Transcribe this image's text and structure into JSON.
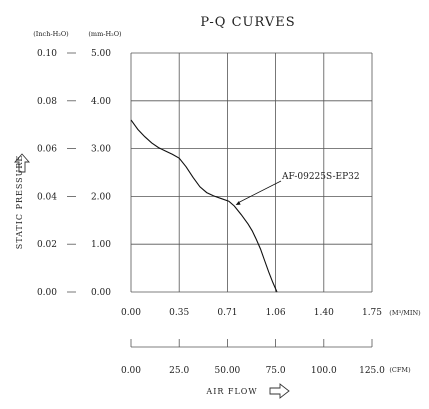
{
  "chart_data": {
    "type": "line",
    "title": "P-Q CURVES",
    "ylabel": "STATIC PRESSURE",
    "xlabel": "AIR FLOW",
    "y_unit_left": "(Inch-H₂O)",
    "y_unit_right": "(mm-H₂O)",
    "x_unit_primary": "(M³/MIN)",
    "x_unit_secondary": "(CFM)",
    "y_ticks_inch": [
      "0.10",
      "0.08",
      "0.06",
      "0.04",
      "0.02",
      "0.00"
    ],
    "y_ticks_mm": [
      "5.00",
      "4.00",
      "3.00",
      "2.00",
      "1.00",
      "0.00"
    ],
    "x_ticks_m3": [
      "0.00",
      "0.35",
      "0.71",
      "1.06",
      "1.40",
      "1.75"
    ],
    "x_ticks_cfm": [
      "0.00",
      "25.0",
      "50.00",
      "75.0",
      "100.0",
      "125.0"
    ],
    "xlim": [
      0,
      1.75
    ],
    "ylim": [
      0,
      5.0
    ],
    "grid": true,
    "series": [
      {
        "name": "AF-09225S-EP32",
        "x": [
          0.0,
          0.05,
          0.1,
          0.15,
          0.2,
          0.25,
          0.3,
          0.35,
          0.4,
          0.45,
          0.5,
          0.55,
          0.6,
          0.65,
          0.71,
          0.75,
          0.8,
          0.85,
          0.88,
          0.91,
          0.94,
          0.97,
          1.0,
          1.03,
          1.06
        ],
        "y": [
          3.6,
          3.4,
          3.25,
          3.12,
          3.02,
          2.95,
          2.88,
          2.8,
          2.62,
          2.4,
          2.2,
          2.08,
          2.01,
          1.96,
          1.9,
          1.8,
          1.62,
          1.42,
          1.28,
          1.1,
          0.9,
          0.66,
          0.42,
          0.2,
          0.0
        ]
      }
    ],
    "annotations": [
      {
        "text": "AF-09225S-EP32",
        "points_to": {
          "x": 0.76,
          "y": 1.82
        }
      }
    ]
  }
}
